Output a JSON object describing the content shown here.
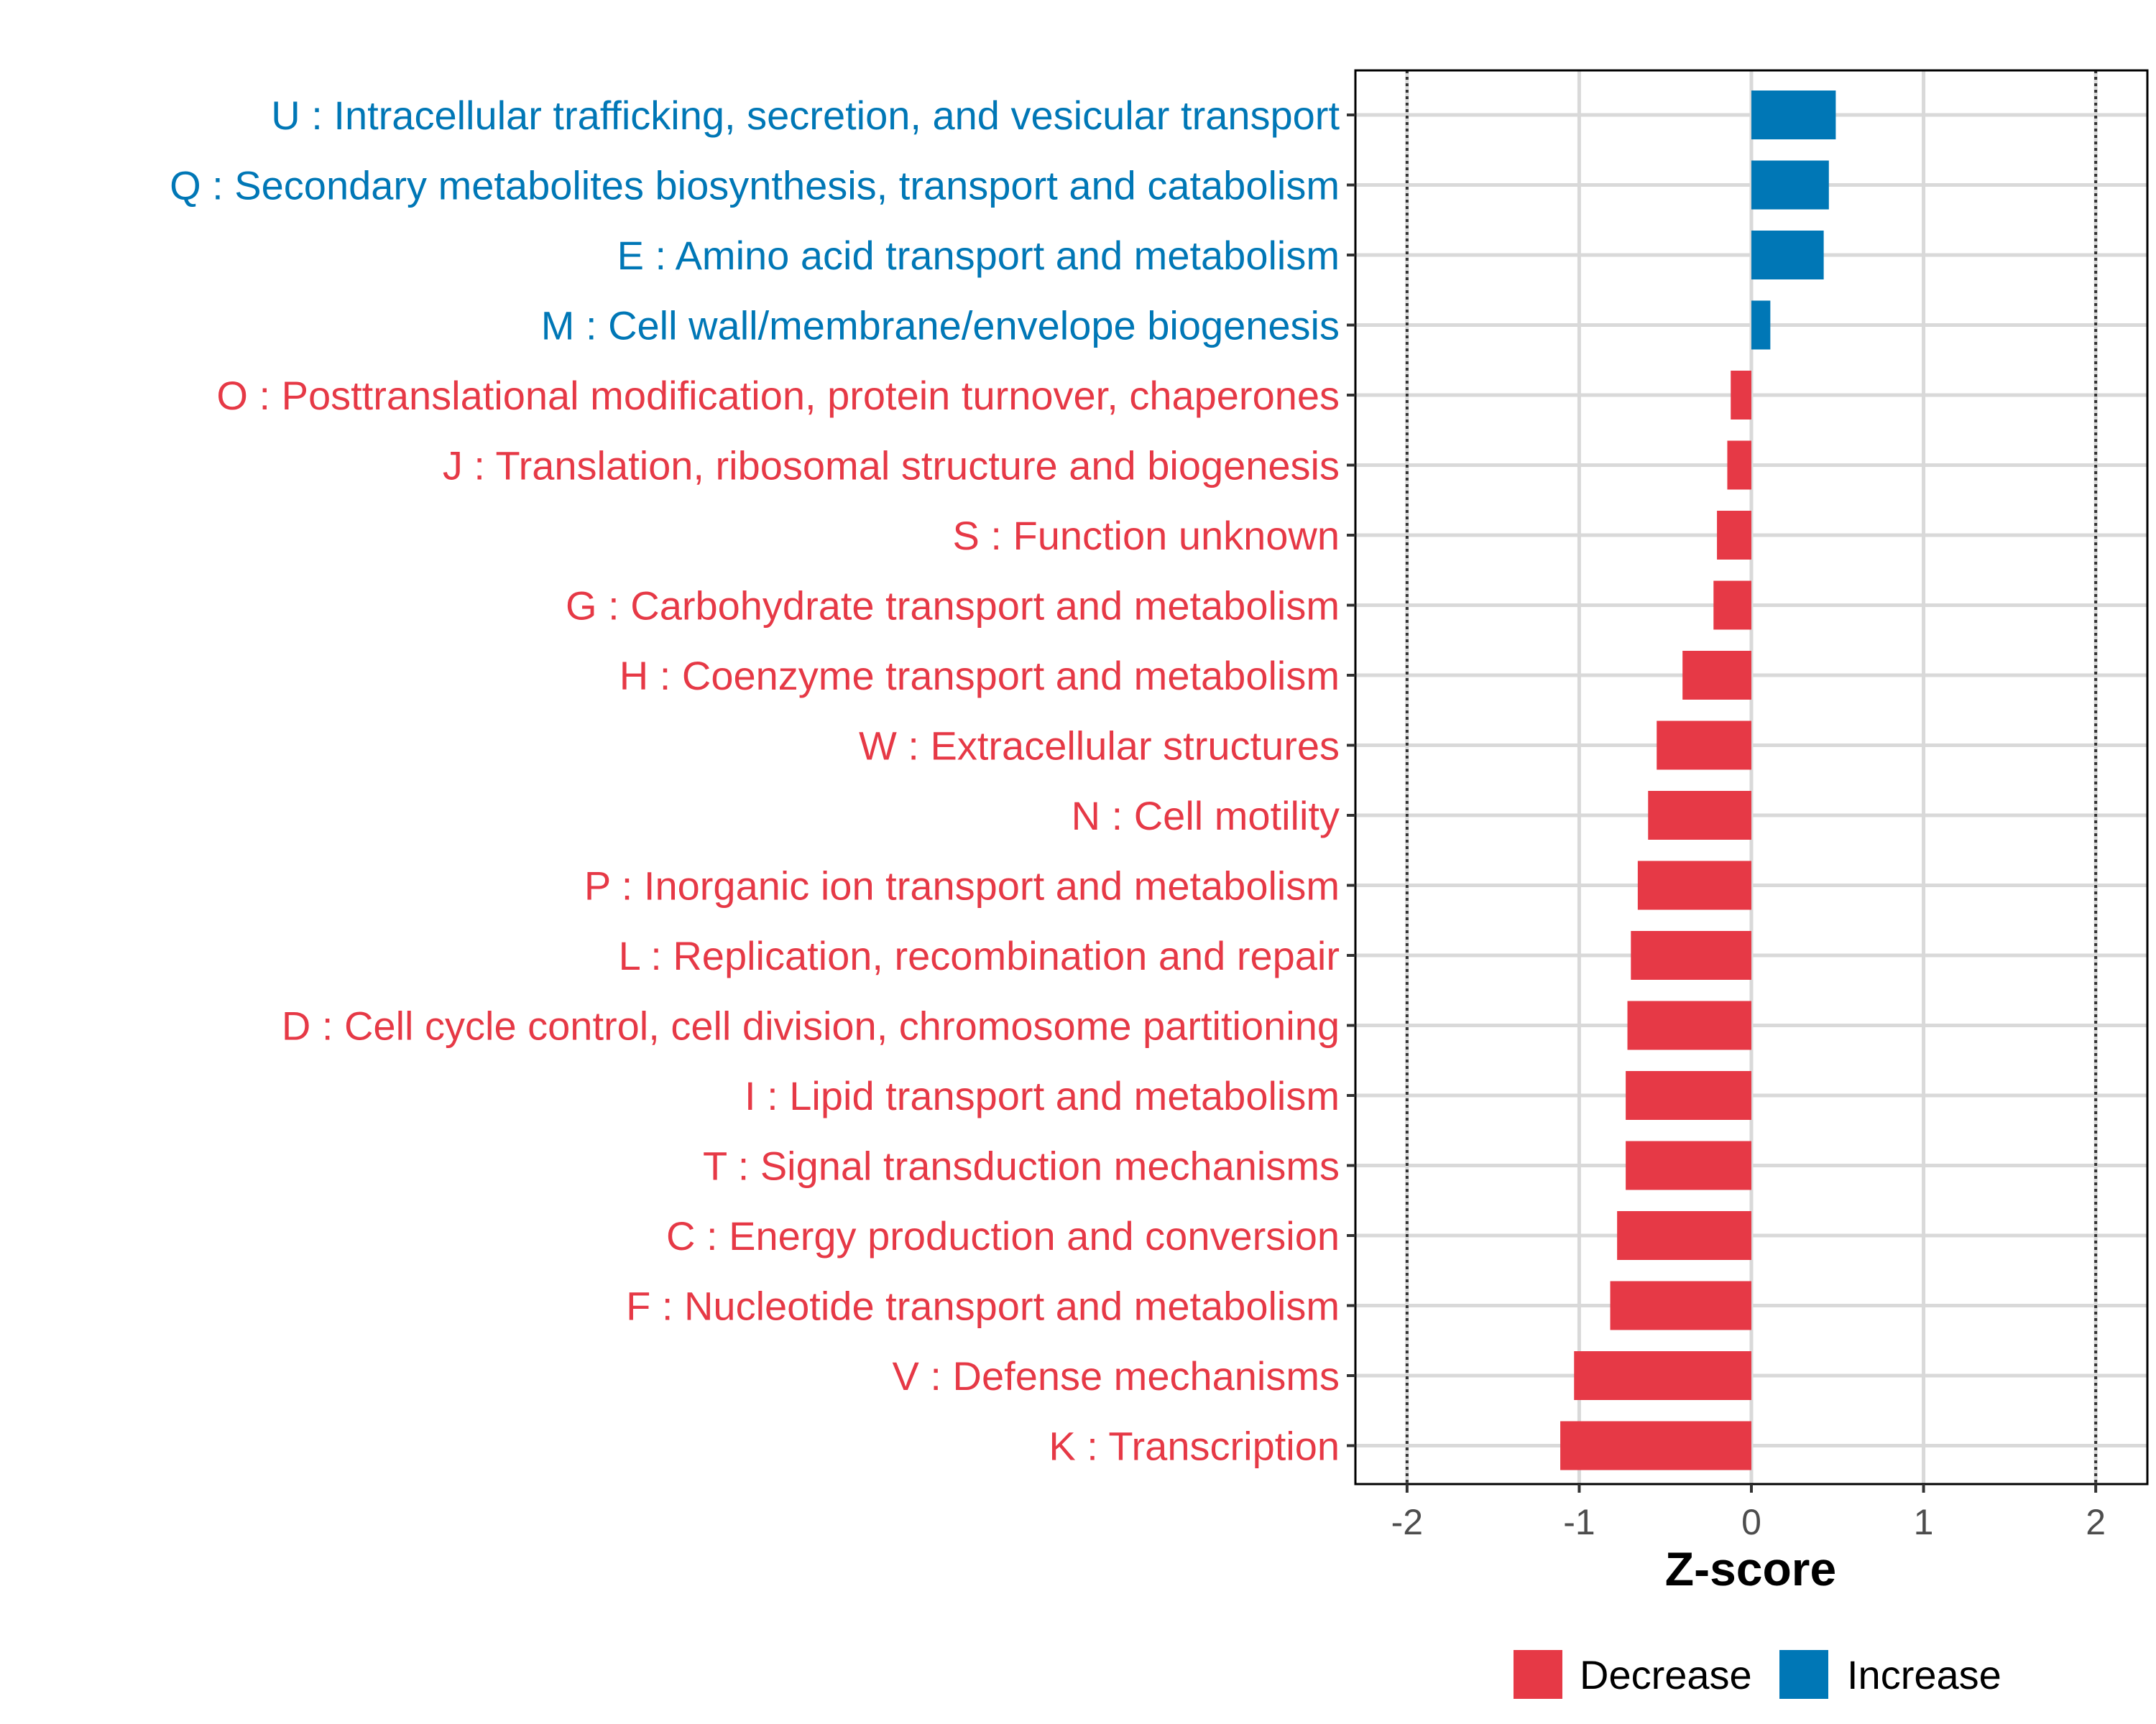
{
  "chart_data": {
    "type": "bar",
    "orientation": "horizontal",
    "xlabel": "Z-score",
    "ylabel": "",
    "xlim": [
      -2.3,
      2.3
    ],
    "x_ticks": [
      -2,
      -1,
      0,
      1,
      2
    ],
    "x_tick_labels": [
      "-2",
      "-1",
      "0",
      "1",
      "2"
    ],
    "reference_lines": [
      -2,
      2
    ],
    "grid": true,
    "colors": {
      "Decrease": "#e63946",
      "Increase": "#0077b6"
    },
    "legend": {
      "position": "bottom",
      "entries": [
        {
          "name": "Decrease",
          "color": "#e63946"
        },
        {
          "name": "Increase",
          "color": "#0077b6"
        }
      ]
    },
    "categories": [
      "U : Intracellular trafficking, secretion, and vesicular transport",
      "Q : Secondary metabolites biosynthesis, transport and catabolism",
      "E : Amino acid transport and metabolism",
      "M : Cell wall/membrane/envelope biogenesis",
      "O : Posttranslational modification, protein turnover, chaperones",
      "J : Translation, ribosomal structure and biogenesis",
      "S : Function unknown",
      "G : Carbohydrate transport and metabolism",
      "H : Coenzyme transport and metabolism",
      "W : Extracellular structures",
      "N : Cell motility",
      "P : Inorganic ion transport and metabolism",
      "L : Replication, recombination and repair",
      "D : Cell cycle control, cell division, chromosome partitioning",
      "I : Lipid transport and metabolism",
      "T : Signal transduction mechanisms",
      "C : Energy production and conversion",
      "F : Nucleotide transport and metabolism",
      "V : Defense mechanisms",
      "K : Transcription"
    ],
    "values": [
      0.49,
      0.45,
      0.42,
      0.11,
      -0.12,
      -0.14,
      -0.2,
      -0.22,
      -0.4,
      -0.55,
      -0.6,
      -0.66,
      -0.7,
      -0.72,
      -0.73,
      -0.73,
      -0.78,
      -0.82,
      -1.03,
      -1.11
    ],
    "groups": [
      "Increase",
      "Increase",
      "Increase",
      "Increase",
      "Decrease",
      "Decrease",
      "Decrease",
      "Decrease",
      "Decrease",
      "Decrease",
      "Decrease",
      "Decrease",
      "Decrease",
      "Decrease",
      "Decrease",
      "Decrease",
      "Decrease",
      "Decrease",
      "Decrease",
      "Decrease"
    ]
  }
}
